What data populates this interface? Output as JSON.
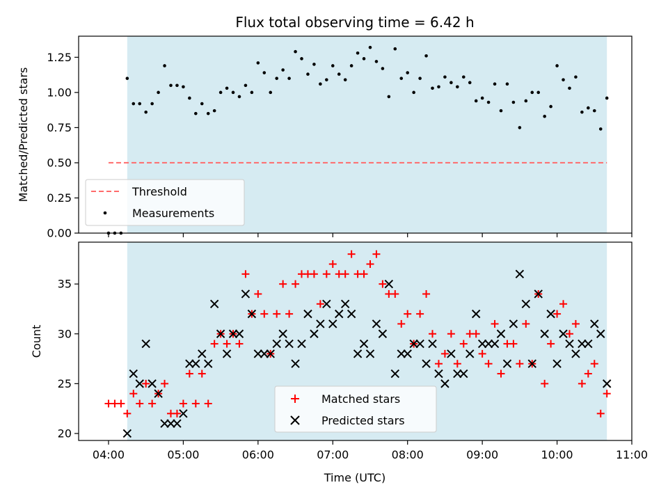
{
  "chart_data": [
    {
      "type": "scatter",
      "title": "Flux total observing time = 6.42 h",
      "xlabel": "",
      "ylabel": "Matched/Predicted stars",
      "xlim": [
        "03:36",
        "11:00"
      ],
      "ylim": [
        0,
        1.4
      ],
      "yticks": [
        "0.00",
        "0.25",
        "0.50",
        "0.75",
        "1.00",
        "1.25"
      ],
      "shaded_region": [
        "04:15",
        "10:40"
      ],
      "shade_color": "#add8e6",
      "threshold": {
        "name": "Threshold",
        "value": 0.5,
        "x_start": "04:00",
        "x_end": "10:40",
        "color": "#ff6b6b"
      },
      "legend": [
        "Threshold",
        "Measurements"
      ],
      "legend_position": "lower-left",
      "series": [
        {
          "name": "Measurements",
          "color": "#000000",
          "x": [
            "04:00",
            "04:05",
            "04:10",
            "04:15",
            "04:20",
            "04:25",
            "04:30",
            "04:35",
            "04:40",
            "04:45",
            "04:50",
            "04:55",
            "05:00",
            "05:05",
            "05:10",
            "05:15",
            "05:20",
            "05:25",
            "05:30",
            "05:35",
            "05:40",
            "05:45",
            "05:50",
            "05:55",
            "06:00",
            "06:05",
            "06:10",
            "06:15",
            "06:20",
            "06:25",
            "06:30",
            "06:35",
            "06:40",
            "06:45",
            "06:50",
            "06:55",
            "07:00",
            "07:05",
            "07:10",
            "07:15",
            "07:20",
            "07:25",
            "07:30",
            "07:35",
            "07:40",
            "07:45",
            "07:50",
            "07:55",
            "08:00",
            "08:05",
            "08:10",
            "08:15",
            "08:20",
            "08:25",
            "08:30",
            "08:35",
            "08:40",
            "08:45",
            "08:50",
            "08:55",
            "09:00",
            "09:05",
            "09:10",
            "09:15",
            "09:20",
            "09:25",
            "09:30",
            "09:35",
            "09:40",
            "09:45",
            "09:50",
            "09:55",
            "10:00",
            "10:05",
            "10:10",
            "10:15",
            "10:20",
            "10:25",
            "10:30",
            "10:35",
            "10:40"
          ],
          "y": [
            0.0,
            0.0,
            0.0,
            1.1,
            0.92,
            0.92,
            0.86,
            0.92,
            1.0,
            1.19,
            1.05,
            1.05,
            1.04,
            0.96,
            0.85,
            0.92,
            0.85,
            0.87,
            1.0,
            1.03,
            1.0,
            0.97,
            1.05,
            1.0,
            1.21,
            1.14,
            1.0,
            1.1,
            1.16,
            1.1,
            1.29,
            1.24,
            1.13,
            1.2,
            1.06,
            1.09,
            1.19,
            1.13,
            1.09,
            1.19,
            1.28,
            1.24,
            1.32,
            1.22,
            1.17,
            0.97,
            1.31,
            1.1,
            1.14,
            1.0,
            1.1,
            1.26,
            1.03,
            1.04,
            1.11,
            1.07,
            1.04,
            1.11,
            1.07,
            0.94,
            0.96,
            0.93,
            1.06,
            0.87,
            1.06,
            0.93,
            0.75,
            0.94,
            1.0,
            1.0,
            0.83,
            0.9,
            1.19,
            1.09,
            1.03,
            1.11,
            0.86,
            0.89,
            0.87,
            0.74,
            0.96
          ]
        }
      ]
    },
    {
      "type": "scatter",
      "title": "",
      "xlabel": "Time (UTC)",
      "ylabel": "Count",
      "xlim": [
        "03:36",
        "11:00"
      ],
      "ylim": [
        19.3,
        39.2
      ],
      "yticks": [
        "20",
        "25",
        "30",
        "35"
      ],
      "xticks": [
        "04:00",
        "05:00",
        "06:00",
        "07:00",
        "08:00",
        "09:00",
        "10:00",
        "11:00"
      ],
      "shaded_region": [
        "04:15",
        "10:40"
      ],
      "legend": [
        "Matched stars",
        "Predicted stars"
      ],
      "legend_position": "lower-center",
      "series": [
        {
          "name": "Matched stars",
          "marker": "plus",
          "color": "#ff0000",
          "x": [
            "04:00",
            "04:05",
            "04:10",
            "04:15",
            "04:20",
            "04:25",
            "04:30",
            "04:35",
            "04:40",
            "04:45",
            "04:50",
            "04:55",
            "05:00",
            "05:05",
            "05:10",
            "05:15",
            "05:20",
            "05:25",
            "05:30",
            "05:35",
            "05:40",
            "05:45",
            "05:50",
            "05:55",
            "06:00",
            "06:05",
            "06:10",
            "06:15",
            "06:20",
            "06:25",
            "06:30",
            "06:35",
            "06:40",
            "06:45",
            "06:50",
            "06:55",
            "07:00",
            "07:05",
            "07:10",
            "07:15",
            "07:20",
            "07:25",
            "07:30",
            "07:35",
            "07:40",
            "07:45",
            "07:50",
            "07:55",
            "08:00",
            "08:05",
            "08:10",
            "08:15",
            "08:20",
            "08:25",
            "08:30",
            "08:35",
            "08:40",
            "08:45",
            "08:50",
            "08:55",
            "09:00",
            "09:05",
            "09:10",
            "09:15",
            "09:20",
            "09:25",
            "09:30",
            "09:35",
            "09:40",
            "09:45",
            "09:50",
            "09:55",
            "10:00",
            "10:05",
            "10:10",
            "10:15",
            "10:20",
            "10:25",
            "10:30",
            "10:35",
            "10:40"
          ],
          "y": [
            23,
            23,
            23,
            22,
            24,
            23,
            25,
            23,
            24,
            25,
            22,
            22,
            23,
            26,
            23,
            26,
            23,
            29,
            30,
            29,
            30,
            29,
            36,
            32,
            34,
            32,
            28,
            32,
            35,
            32,
            35,
            36,
            36,
            36,
            33,
            36,
            37,
            36,
            36,
            38,
            36,
            36,
            37,
            38,
            35,
            34,
            34,
            31,
            32,
            29,
            32,
            34,
            30,
            27,
            28,
            30,
            27,
            29,
            30,
            30,
            28,
            27,
            31,
            26,
            29,
            29,
            27,
            31,
            27,
            34,
            25,
            29,
            32,
            33,
            30,
            31,
            25,
            26,
            27,
            22,
            24
          ]
        },
        {
          "name": "Predicted stars",
          "marker": "x",
          "color": "#000000",
          "x": [
            "04:15",
            "04:20",
            "04:25",
            "04:30",
            "04:35",
            "04:40",
            "04:45",
            "04:50",
            "04:55",
            "05:00",
            "05:05",
            "05:10",
            "05:15",
            "05:20",
            "05:25",
            "05:30",
            "05:35",
            "05:40",
            "05:45",
            "05:50",
            "05:55",
            "06:00",
            "06:05",
            "06:10",
            "06:15",
            "06:20",
            "06:25",
            "06:30",
            "06:35",
            "06:40",
            "06:45",
            "06:50",
            "06:55",
            "07:00",
            "07:05",
            "07:10",
            "07:15",
            "07:20",
            "07:25",
            "07:30",
            "07:35",
            "07:40",
            "07:45",
            "07:50",
            "07:55",
            "08:00",
            "08:05",
            "08:10",
            "08:15",
            "08:20",
            "08:25",
            "08:30",
            "08:35",
            "08:40",
            "08:45",
            "08:50",
            "08:55",
            "09:00",
            "09:05",
            "09:10",
            "09:15",
            "09:20",
            "09:25",
            "09:30",
            "09:35",
            "09:40",
            "09:45",
            "09:50",
            "09:55",
            "10:00",
            "10:05",
            "10:10",
            "10:15",
            "10:20",
            "10:25",
            "10:30",
            "10:35",
            "10:40"
          ],
          "y": [
            20,
            26,
            25,
            29,
            25,
            24,
            21,
            21,
            21,
            22,
            27,
            27,
            28,
            27,
            33,
            30,
            28,
            30,
            30,
            34,
            32,
            28,
            28,
            28,
            29,
            30,
            29,
            27,
            29,
            32,
            30,
            31,
            33,
            31,
            32,
            33,
            32,
            28,
            29,
            28,
            31,
            30,
            35,
            26,
            28,
            28,
            29,
            29,
            27,
            29,
            26,
            25,
            28,
            26,
            26,
            28,
            32,
            29,
            29,
            29,
            30,
            27,
            31,
            36,
            33,
            27,
            34,
            30,
            32,
            27,
            30,
            29,
            28,
            29,
            29,
            31,
            30,
            25
          ]
        }
      ]
    }
  ]
}
